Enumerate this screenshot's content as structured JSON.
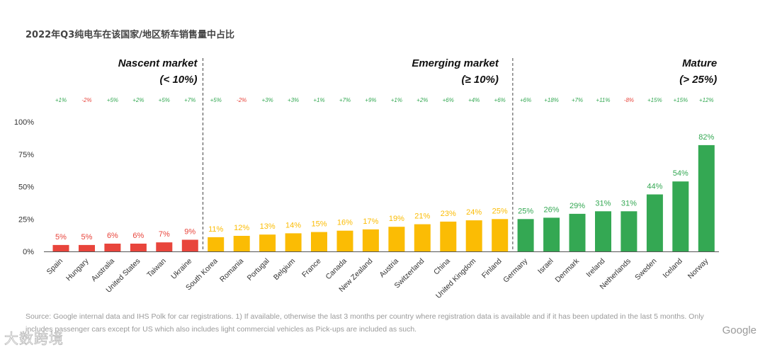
{
  "title": "2022年Q3纯电车在该国家/地区轿车销售量中占比",
  "source": "Source: Google internal data and IHS Polk for car registrations. 1) If available, otherwise the last 3 months per country where registration data is available and if it has been updated in the last 5 months. Only includes passenger cars except for US which also includes light commercial vehicles as Pick-ups are included as such.",
  "brand": "Google",
  "watermark": "大数跨境",
  "colors": {
    "nascent": "#E8453C",
    "emerging": "#FBBC04",
    "mature": "#34A853",
    "positive": "#34A853",
    "negative": "#E8453C",
    "text": "#333333"
  },
  "chart_data": {
    "type": "bar",
    "title": "2022年Q3纯电车在该国家/地区轿车销售量中占比",
    "categories": [
      "Spain",
      "Hungary",
      "Australia",
      "United States",
      "Taiwan",
      "Ukraine",
      "South Korea",
      "Romania",
      "Portugal",
      "Belgium",
      "France",
      "Canada",
      "New Zealand",
      "Austria",
      "Switzerland",
      "China",
      "United Kingdom",
      "Finland",
      "Germany",
      "Israel",
      "Denmark",
      "Ireland",
      "Netherlands",
      "Sweden",
      "Iceland",
      "Norway"
    ],
    "values": [
      5,
      5,
      6,
      6,
      7,
      9,
      11,
      12,
      13,
      14,
      15,
      16,
      17,
      19,
      21,
      23,
      24,
      25,
      25,
      26,
      29,
      31,
      31,
      44,
      54,
      82
    ],
    "labels": [
      "5%",
      "5%",
      "6%",
      "6%",
      "7%",
      "9%",
      "11%",
      "12%",
      "13%",
      "14%",
      "15%",
      "16%",
      "17%",
      "19%",
      "21%",
      "23%",
      "24%",
      "25%",
      "25%",
      "26%",
      "29%",
      "31%",
      "31%",
      "44%",
      "54%",
      "82%"
    ],
    "changes": [
      "+1%",
      "-2%",
      "+5%",
      "+2%",
      "+5%",
      "+7%",
      "+5%",
      "-2%",
      "+3%",
      "+3%",
      "+1%",
      "+7%",
      "+9%",
      "+1%",
      "+2%",
      "+6%",
      "+4%",
      "+6%",
      "+6%",
      "+18%",
      "+7%",
      "+11%",
      "-8%",
      "+15%",
      "+15%",
      "+12%"
    ],
    "segment": [
      "nascent",
      "nascent",
      "nascent",
      "nascent",
      "nascent",
      "nascent",
      "emerging",
      "emerging",
      "emerging",
      "emerging",
      "emerging",
      "emerging",
      "emerging",
      "emerging",
      "emerging",
      "emerging",
      "emerging",
      "emerging",
      "mature",
      "mature",
      "mature",
      "mature",
      "mature",
      "mature",
      "mature",
      "mature"
    ],
    "ylim": [
      0,
      100
    ],
    "yticks": [
      0,
      25,
      50,
      75,
      100
    ],
    "ytick_labels": [
      "0%",
      "25%",
      "50%",
      "75%",
      "100%"
    ],
    "xlabel": "",
    "ylabel": "",
    "groups": [
      {
        "name": "Nascent market",
        "range": "(< 10%)"
      },
      {
        "name": "Emerging market",
        "range": "(≥ 10%)"
      },
      {
        "name": "Mature",
        "range": "(> 25%)"
      }
    ]
  }
}
